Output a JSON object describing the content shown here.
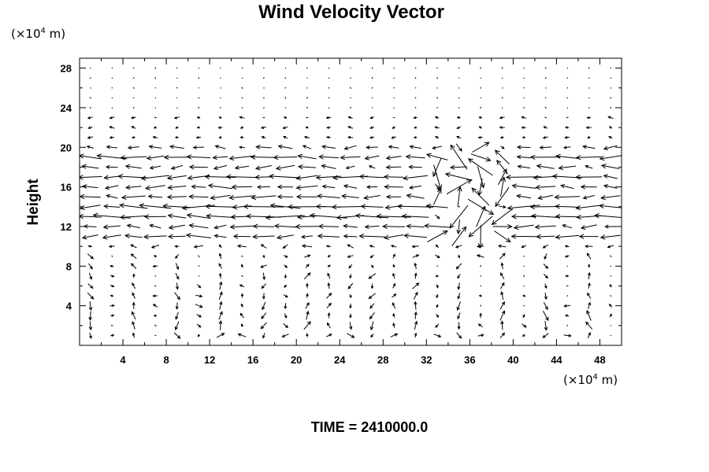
{
  "chart_data": {
    "type": "vector-field",
    "title": "Wind Velocity Vector",
    "x_unit_prefix": "(×10",
    "x_unit_exp": "4",
    "x_unit_suffix": " m)",
    "y_unit_prefix": "(×10",
    "y_unit_exp": "4",
    "y_unit_suffix": " m)",
    "ylabel": "Height",
    "xlim": [
      0,
      50
    ],
    "ylim": [
      0,
      29
    ],
    "x_ticks": [
      4,
      8,
      12,
      16,
      20,
      24,
      28,
      32,
      36,
      40,
      44,
      48
    ],
    "y_ticks": [
      4,
      8,
      12,
      16,
      20,
      24,
      28
    ],
    "minor_tick_step": 2,
    "grid": false,
    "time_label": "TIME = 2410000.0",
    "vector_color": "#000000",
    "sampling": {
      "x_start": 1.0,
      "x_step": 2.0,
      "x_count": 25,
      "y_start": 1.0,
      "y_step": 1.0,
      "y_count": 28
    },
    "field_note": "dense vector field approximated procedurally",
    "strong_layers": [
      {
        "y": 20.0,
        "u": -1.2
      },
      {
        "y": 19.0,
        "u": -2.6
      },
      {
        "y": 18.0,
        "u": -1.5
      },
      {
        "y": 17.0,
        "u": -2.8
      },
      {
        "y": 16.0,
        "u": -1.9
      },
      {
        "y": 15.0,
        "u": -2.1
      },
      {
        "y": 14.0,
        "u": -3.2
      },
      {
        "y": 13.0,
        "u": -3.3
      },
      {
        "y": 12.0,
        "u": -1.8
      },
      {
        "y": 11.0,
        "u": -2.0
      },
      {
        "y": 10.0,
        "u": -0.6
      }
    ],
    "turbulent_zone": {
      "x_min": 32,
      "x_max": 40,
      "y_min": 11,
      "y_max": 20
    }
  }
}
